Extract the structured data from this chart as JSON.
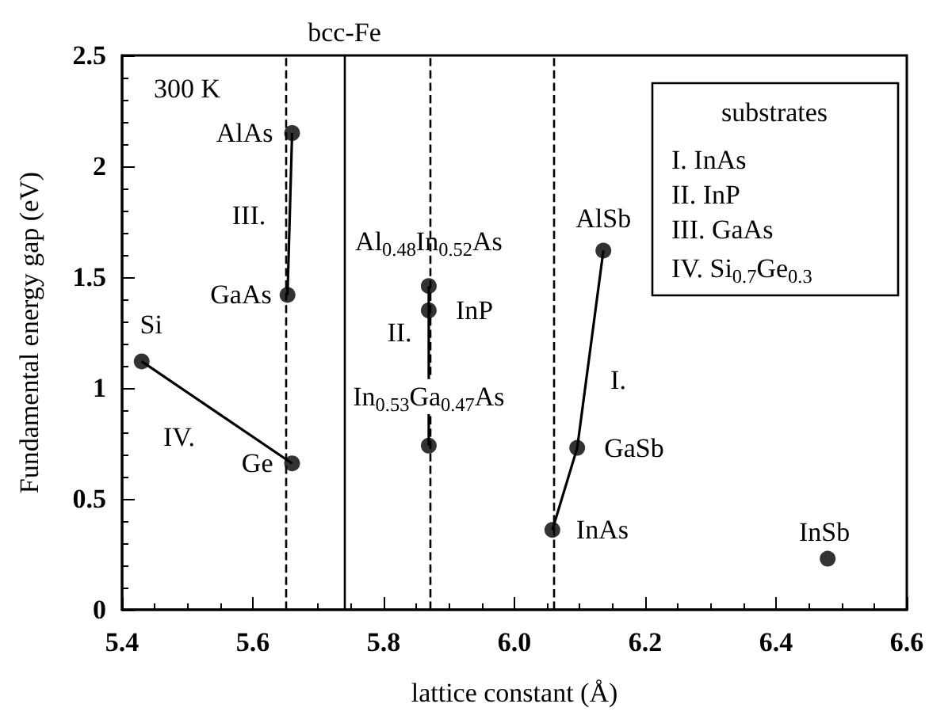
{
  "chart_data": {
    "type": "scatter",
    "xlabel": "lattice constant (Å)",
    "ylabel": "Fundamental energy gap (eV)",
    "xlim": [
      5.4,
      6.6
    ],
    "xticks": [
      5.4,
      5.6,
      5.8,
      {
        "value": 6,
        "label": "6.0"
      },
      6.2,
      6.4,
      6.6
    ],
    "ylim": [
      0,
      2.5
    ],
    "yticks": [
      0,
      0.5,
      1,
      1.5,
      2,
      2.5
    ],
    "grid": false,
    "series": [
      {
        "type": "line",
        "color": "#000000",
        "marker": "none",
        "x": [
          5.43,
          5.66
        ],
        "values": [
          1.12,
          0.66
        ]
      },
      {
        "type": "line",
        "color": "#000000",
        "marker": "none",
        "x": [
          5.653,
          5.66
        ],
        "values": [
          1.42,
          2.15
        ]
      },
      {
        "type": "line",
        "color": "#000000",
        "marker": "none",
        "x": [
          6.058,
          6.096,
          6.136
        ],
        "values": [
          0.36,
          0.73,
          1.62
        ]
      },
      {
        "type": "line",
        "color": "#000000",
        "marker": "none",
        "x": [
          5.869,
          5.869
        ],
        "values": [
          0.74,
          1.46
        ]
      },
      {
        "color": "#000000",
        "marker": "circle",
        "x": [
          5.43,
          5.66,
          5.653,
          5.66,
          5.869,
          5.869,
          5.869,
          6.058,
          6.096,
          6.136,
          6.479
        ],
        "values": [
          1.12,
          0.66,
          1.42,
          2.15,
          1.46,
          1.35,
          0.74,
          0.36,
          0.73,
          1.62,
          0.23
        ]
      }
    ],
    "ref_lines": [
      {
        "axis": "x",
        "value": 5.653,
        "color": "#000000",
        "line_style": "dashed"
      },
      {
        "axis": "x",
        "value": 5.74,
        "label": "bcc-Fe",
        "color": "#000000",
        "line_style": "solid"
      },
      {
        "axis": "x",
        "value": 5.869,
        "color": "#000000",
        "line_style": "dashed"
      },
      {
        "axis": "x",
        "value": 6.058,
        "color": "#000000",
        "line_style": "dashed"
      }
    ],
    "annotations": [
      "300 K",
      {
        "text": "Si",
        "x": 5.43,
        "y": 1.12
      },
      {
        "text": "Ge",
        "x": 5.66,
        "y": 0.66
      },
      {
        "text": "GaAs",
        "x": 5.653,
        "y": 1.42
      },
      {
        "text": "AlAs",
        "x": 5.66,
        "y": 2.15
      },
      {
        "text": "Al$_{0.48}$In$_{0.52}$As",
        "x": 5.869,
        "y": 1.46
      },
      {
        "text": "InP",
        "x": 5.869,
        "y": 1.35
      },
      {
        "text": "In$_{0.53}$Ga$_{0.47}$As",
        "x": 5.869,
        "y": 0.74
      },
      {
        "text": "InAs",
        "x": 6.058,
        "y": 0.36
      },
      {
        "text": "GaSb",
        "x": 6.096,
        "y": 0.73
      },
      {
        "text": "AlSb",
        "x": 6.136,
        "y": 1.62
      },
      {
        "text": "InSb",
        "x": 6.479,
        "y": 0.23
      },
      "IV.",
      "III.",
      "II.",
      "I.",
      "substrates",
      "I. InAs",
      "II. InP",
      "III. GaAs",
      "IV. Si$_{0.7}$Ge$_{0.3}$"
    ]
  }
}
